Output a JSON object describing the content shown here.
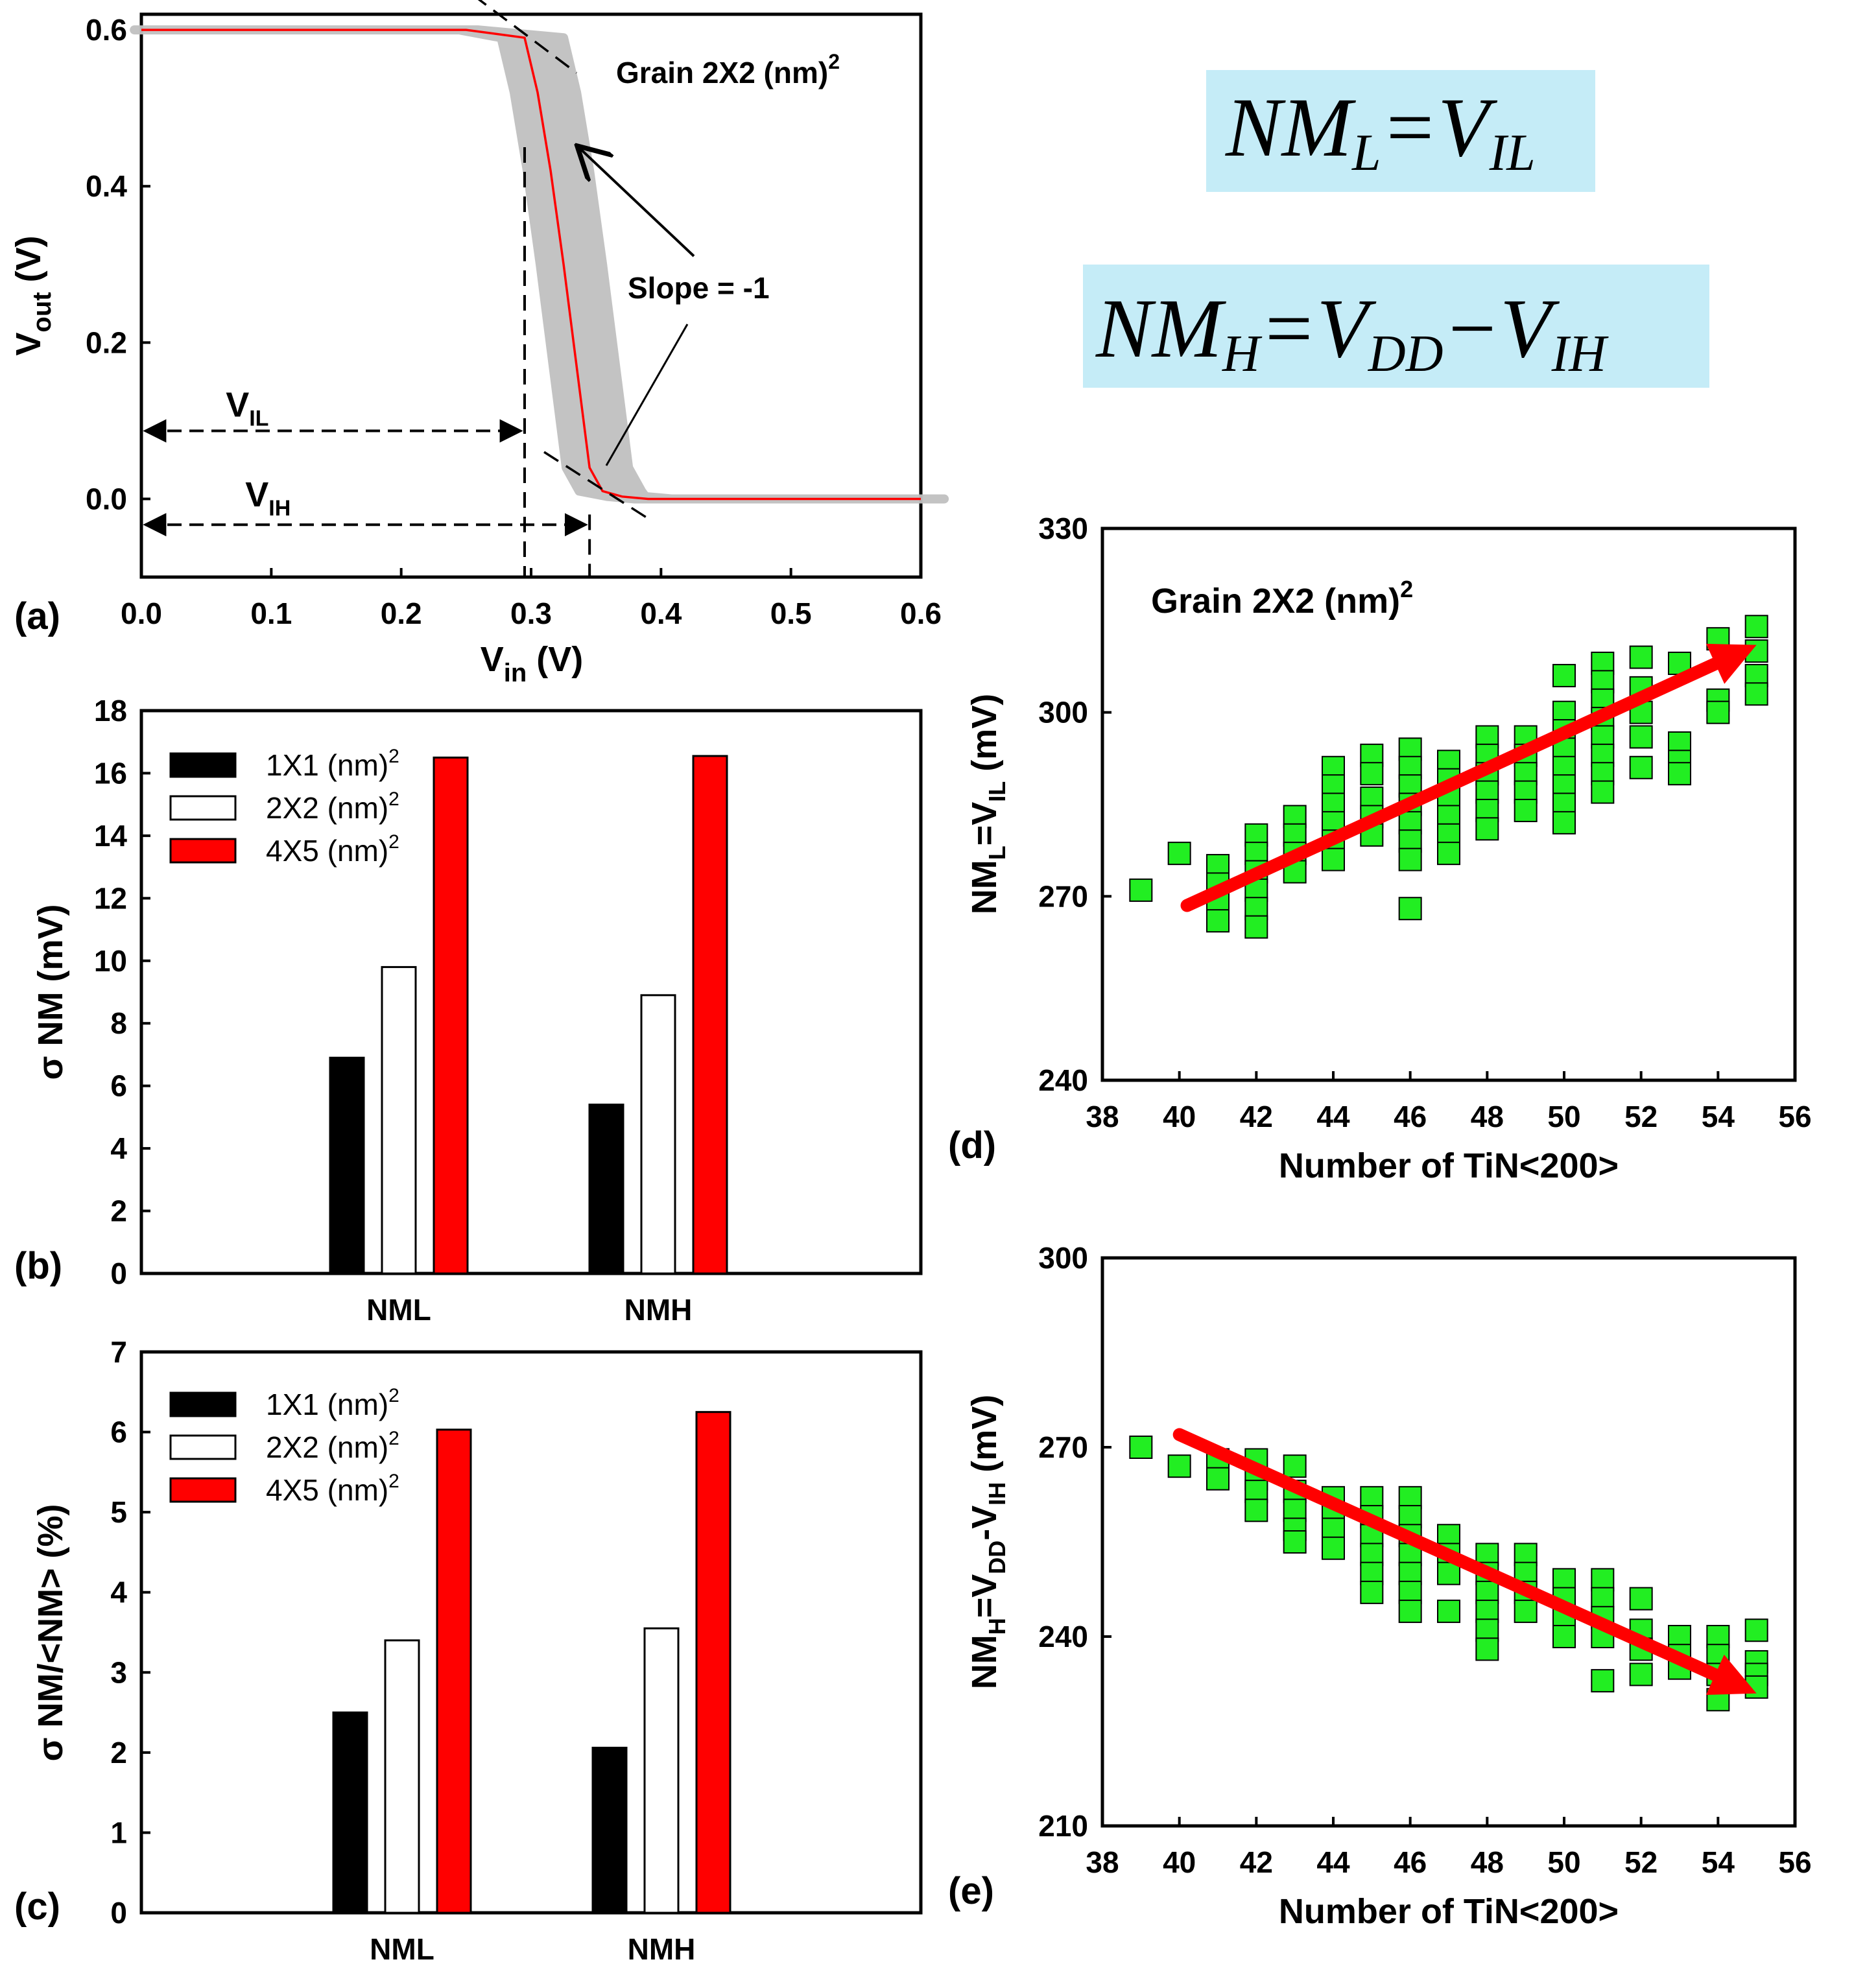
{
  "equations": {
    "nml": {
      "main": "NM",
      "sub": "L",
      "mid": "=V",
      "sub2": "IL"
    },
    "nmh": {
      "main": "NM",
      "sub": "H",
      "mid": "=V",
      "sub2": "DD",
      "mid2": "−V",
      "sub3": "IH"
    },
    "bg_color": "#c5ecf7"
  },
  "chart_data": [
    {
      "id": "a",
      "type": "line",
      "panel_label": "(a)",
      "xlabel": "V",
      "xlabel_sub": "in",
      "xlabel_unit": " (V)",
      "ylabel": "V",
      "ylabel_sub": "out",
      "ylabel_unit": " (V)",
      "xlim": [
        0,
        0.6
      ],
      "ylim": [
        -0.1,
        0.62
      ],
      "xticks": [
        "0.0",
        "0.1",
        "0.2",
        "0.3",
        "0.4",
        "0.5",
        "0.6"
      ],
      "yticks": [
        "0.0",
        "0.2",
        "0.4",
        "0.6"
      ],
      "title": "Grain 2X2 (nm)",
      "title_sup": "2",
      "annotation": "Slope = -1",
      "vil_label": "V",
      "vil_sub": "IL",
      "vih_label": "V",
      "vih_sub": "IH",
      "vil": 0.295,
      "vih": 0.345,
      "mean_curve": {
        "x": [
          0.0,
          0.25,
          0.295,
          0.305,
          0.315,
          0.325,
          0.335,
          0.345,
          0.355,
          0.37,
          0.39,
          0.6
        ],
        "y": [
          0.6,
          0.6,
          0.59,
          0.52,
          0.42,
          0.3,
          0.17,
          0.04,
          0.01,
          0.003,
          0.0,
          0.0
        ]
      },
      "spread_band_x_offset": 0.03,
      "curve_color": "#ff0000",
      "band_color": "#c0c0c0"
    },
    {
      "id": "b",
      "type": "bar",
      "panel_label": "(b)",
      "ylabel": "σ NM (mV)",
      "categories": [
        "NML",
        "NMH"
      ],
      "ylim": [
        0,
        18
      ],
      "yticks": [
        "0",
        "2",
        "4",
        "6",
        "8",
        "10",
        "12",
        "14",
        "16",
        "18"
      ],
      "series": [
        {
          "name": "1X1 (nm)",
          "sup": "2",
          "values": [
            6.9,
            5.4
          ],
          "color": "#000000"
        },
        {
          "name": "2X2 (nm)",
          "sup": "2",
          "values": [
            9.8,
            8.9
          ],
          "color": "#ffffff"
        },
        {
          "name": "4X5 (nm)",
          "sup": "2",
          "values": [
            16.5,
            16.55
          ],
          "color": "#ff0000"
        }
      ]
    },
    {
      "id": "c",
      "type": "bar",
      "panel_label": "(c)",
      "ylabel": "σ NM/<NM> (%)",
      "categories": [
        "NML",
        "NMH"
      ],
      "ylim": [
        0,
        7
      ],
      "yticks": [
        "0",
        "1",
        "2",
        "3",
        "4",
        "5",
        "6",
        "7"
      ],
      "series": [
        {
          "name": "1X1 (nm)",
          "sup": "2",
          "values": [
            2.5,
            2.06
          ],
          "color": "#000000"
        },
        {
          "name": "2X2 (nm)",
          "sup": "2",
          "values": [
            3.4,
            3.55
          ],
          "color": "#ffffff"
        },
        {
          "name": "4X5 (nm)",
          "sup": "2",
          "values": [
            6.03,
            6.25
          ],
          "color": "#ff0000"
        }
      ]
    },
    {
      "id": "d",
      "type": "scatter",
      "panel_label": "(d)",
      "title": "Grain 2X2 (nm)",
      "title_sup": "2",
      "xlabel": "Number of TiN<200>",
      "ylabel_parts": [
        "NM",
        "L",
        "=V",
        "IL",
        " (mV)"
      ],
      "xlim": [
        38,
        56
      ],
      "ylim": [
        240,
        330
      ],
      "xticks": [
        "38",
        "40",
        "42",
        "44",
        "46",
        "48",
        "50",
        "52",
        "54",
        "56"
      ],
      "yticks": [
        "240",
        "270",
        "300",
        "330"
      ],
      "trend": {
        "x": [
          40.2,
          55
        ],
        "y": [
          268.5,
          311
        ]
      },
      "marker_color": "#22ee22",
      "points": [
        [
          39,
          271
        ],
        [
          40,
          277
        ],
        [
          41,
          275
        ],
        [
          41,
          272
        ],
        [
          41,
          269
        ],
        [
          41,
          266
        ],
        [
          42,
          280
        ],
        [
          42,
          277
        ],
        [
          42,
          274
        ],
        [
          42,
          271
        ],
        [
          42,
          268
        ],
        [
          42,
          265
        ],
        [
          43,
          283
        ],
        [
          43,
          280
        ],
        [
          43,
          277
        ],
        [
          43,
          274
        ],
        [
          44,
          291
        ],
        [
          44,
          288
        ],
        [
          44,
          285
        ],
        [
          44,
          282
        ],
        [
          44,
          279
        ],
        [
          44,
          276
        ],
        [
          45,
          293
        ],
        [
          45,
          290
        ],
        [
          45,
          286
        ],
        [
          45,
          283
        ],
        [
          45,
          280
        ],
        [
          46,
          294
        ],
        [
          46,
          291
        ],
        [
          46,
          288
        ],
        [
          46,
          285
        ],
        [
          46,
          282
        ],
        [
          46,
          279
        ],
        [
          46,
          276
        ],
        [
          46,
          268
        ],
        [
          47,
          292
        ],
        [
          47,
          289
        ],
        [
          47,
          286
        ],
        [
          47,
          283
        ],
        [
          47,
          280
        ],
        [
          47,
          277
        ],
        [
          48,
          296
        ],
        [
          48,
          293
        ],
        [
          48,
          290
        ],
        [
          48,
          287
        ],
        [
          48,
          284
        ],
        [
          48,
          281
        ],
        [
          49,
          296
        ],
        [
          49,
          293
        ],
        [
          49,
          290
        ],
        [
          49,
          287
        ],
        [
          49,
          284
        ],
        [
          50,
          306
        ],
        [
          50,
          300
        ],
        [
          50,
          297
        ],
        [
          50,
          294
        ],
        [
          50,
          291
        ],
        [
          50,
          288
        ],
        [
          50,
          285
        ],
        [
          50,
          282
        ],
        [
          51,
          308
        ],
        [
          51,
          305
        ],
        [
          51,
          302
        ],
        [
          51,
          299
        ],
        [
          51,
          296
        ],
        [
          51,
          293
        ],
        [
          51,
          290
        ],
        [
          51,
          287
        ],
        [
          52,
          309
        ],
        [
          52,
          304
        ],
        [
          52,
          300
        ],
        [
          52,
          296
        ],
        [
          52,
          291
        ],
        [
          53,
          308
        ],
        [
          53,
          295
        ],
        [
          53,
          292
        ],
        [
          53,
          290
        ],
        [
          54,
          312
        ],
        [
          54,
          302
        ],
        [
          54,
          300
        ],
        [
          55,
          314
        ],
        [
          55,
          310
        ],
        [
          55,
          306
        ],
        [
          55,
          303
        ]
      ]
    },
    {
      "id": "e",
      "type": "scatter",
      "panel_label": "(e)",
      "xlabel": "Number of TiN<200>",
      "ylabel_parts": [
        "NM",
        "H",
        "=V",
        "DD",
        "-V",
        "IH",
        " (mV)"
      ],
      "xlim": [
        38,
        56
      ],
      "ylim": [
        210,
        300
      ],
      "xticks": [
        "38",
        "40",
        "42",
        "44",
        "46",
        "48",
        "50",
        "52",
        "54",
        "56"
      ],
      "yticks": [
        "210",
        "240",
        "270",
        "300"
      ],
      "trend": {
        "x": [
          40,
          55
        ],
        "y": [
          272,
          231
        ]
      },
      "marker_color": "#22ee22",
      "points": [
        [
          39,
          270
        ],
        [
          40,
          267
        ],
        [
          41,
          268
        ],
        [
          41,
          265
        ],
        [
          42,
          268
        ],
        [
          42,
          265
        ],
        [
          42,
          263
        ],
        [
          42,
          260
        ],
        [
          43,
          267
        ],
        [
          43,
          263
        ],
        [
          43,
          260
        ],
        [
          43,
          257
        ],
        [
          43,
          255
        ],
        [
          44,
          262
        ],
        [
          44,
          259
        ],
        [
          44,
          257
        ],
        [
          44,
          254
        ],
        [
          45,
          262
        ],
        [
          45,
          259
        ],
        [
          45,
          256
        ],
        [
          45,
          253
        ],
        [
          45,
          250
        ],
        [
          45,
          247
        ],
        [
          46,
          262
        ],
        [
          46,
          259
        ],
        [
          46,
          256
        ],
        [
          46,
          253
        ],
        [
          46,
          250
        ],
        [
          46,
          247
        ],
        [
          46,
          244
        ],
        [
          47,
          256
        ],
        [
          47,
          253
        ],
        [
          47,
          250
        ],
        [
          47,
          244
        ],
        [
          48,
          253
        ],
        [
          48,
          250
        ],
        [
          48,
          247
        ],
        [
          48,
          244
        ],
        [
          48,
          241
        ],
        [
          48,
          238
        ],
        [
          49,
          253
        ],
        [
          49,
          250
        ],
        [
          49,
          247
        ],
        [
          49,
          244
        ],
        [
          50,
          249
        ],
        [
          50,
          246
        ],
        [
          50,
          243
        ],
        [
          50,
          240
        ],
        [
          51,
          249
        ],
        [
          51,
          246
        ],
        [
          51,
          243
        ],
        [
          51,
          240
        ],
        [
          51,
          233
        ],
        [
          52,
          246
        ],
        [
          52,
          241
        ],
        [
          52,
          238
        ],
        [
          52,
          234
        ],
        [
          53,
          240
        ],
        [
          53,
          237
        ],
        [
          53,
          235
        ],
        [
          54,
          240
        ],
        [
          54,
          237
        ],
        [
          54,
          234
        ],
        [
          54,
          230
        ],
        [
          55,
          241
        ],
        [
          55,
          236
        ],
        [
          55,
          234
        ],
        [
          55,
          232
        ]
      ]
    }
  ]
}
